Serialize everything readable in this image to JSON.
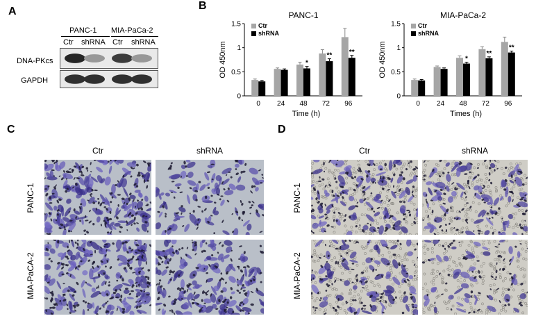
{
  "panels": {
    "A": "A",
    "B": "B",
    "C": "C",
    "D": "D"
  },
  "western": {
    "cell_lines": [
      "PANC-1",
      "MIA-PaCa-2"
    ],
    "lanes": [
      "Ctr",
      "shRNA",
      "Ctr",
      "shRNA"
    ],
    "proteins": [
      "DNA-PKcs",
      "GAPDH"
    ],
    "band_intensity": {
      "DNA-PKcs": [
        0.95,
        0.45,
        0.85,
        0.45
      ],
      "GAPDH": [
        0.9,
        0.9,
        0.9,
        0.9
      ]
    }
  },
  "chart_data": [
    {
      "type": "bar",
      "title": "PANC-1",
      "xlabel": "Time (h)",
      "ylabel": "OD 450nm",
      "categories": [
        "0",
        "24",
        "48",
        "72",
        "96"
      ],
      "ylim": [
        0,
        1.5
      ],
      "yticks": [
        "0",
        "0.5",
        "1",
        "1.5"
      ],
      "legend_position": "top-left",
      "series": [
        {
          "name": "Ctr",
          "color": "#a6a6a6",
          "values": [
            0.33,
            0.56,
            0.65,
            0.88,
            1.22
          ],
          "errors": [
            0.02,
            0.02,
            0.05,
            0.08,
            0.18
          ]
        },
        {
          "name": "shRNA",
          "color": "#000000",
          "values": [
            0.3,
            0.54,
            0.57,
            0.72,
            0.79
          ],
          "errors": [
            0.02,
            0.02,
            0.04,
            0.05,
            0.05
          ]
        }
      ],
      "significance": [
        "",
        "",
        "*",
        "**",
        "**"
      ]
    },
    {
      "type": "bar",
      "title": "MIA-PaCa-2",
      "xlabel": "Times (h)",
      "ylabel": "OD 450nm",
      "categories": [
        "0",
        "24",
        "48",
        "72",
        "96"
      ],
      "ylim": [
        0,
        1.5
      ],
      "yticks": [
        "0",
        "0.5",
        "1",
        "1.5"
      ],
      "legend_position": "top-left",
      "series": [
        {
          "name": "Ctr",
          "color": "#a6a6a6",
          "values": [
            0.33,
            0.6,
            0.79,
            0.97,
            1.12
          ],
          "errors": [
            0.02,
            0.02,
            0.04,
            0.05,
            0.1
          ]
        },
        {
          "name": "shRNA",
          "color": "#000000",
          "values": [
            0.32,
            0.56,
            0.67,
            0.78,
            0.9
          ],
          "errors": [
            0.02,
            0.02,
            0.03,
            0.03,
            0.03
          ]
        }
      ],
      "significance": [
        "",
        "",
        "*",
        "**",
        "**"
      ]
    }
  ],
  "invasion": {
    "C": {
      "cols": [
        "Ctr",
        "shRNA"
      ],
      "rows": [
        "PANC-1",
        "MIA-PaCA-2"
      ]
    },
    "D": {
      "cols": [
        "Ctr",
        "shRNA"
      ],
      "rows": [
        "PANC-1",
        "MIA-PaCA-2"
      ]
    }
  },
  "colors": {
    "stain": "#5a4f93",
    "background": "#c8ccd0",
    "nuclei": "#1d1b33"
  }
}
